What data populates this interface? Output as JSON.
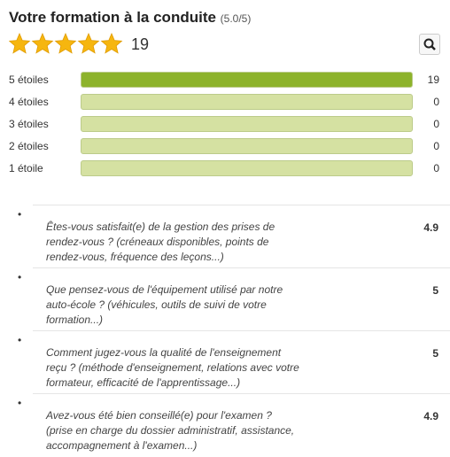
{
  "header": {
    "title": "Votre formation à la conduite",
    "rating": "(5.0/5)",
    "review_count": 19
  },
  "ratings": [
    {
      "label": "5 étoiles",
      "count": 19
    },
    {
      "label": "4 étoiles",
      "count": 0
    },
    {
      "label": "3 étoiles",
      "count": 0
    },
    {
      "label": "2 étoiles",
      "count": 0
    },
    {
      "label": "1 étoile",
      "count": 0
    }
  ],
  "questions": [
    {
      "lines": [
        "Êtes-vous satisfait(e) de la gestion des prises de",
        "rendez-vous ? (créneaux disponibles, points de",
        "rendez-vous, fréquence des leçons...)"
      ],
      "score": 4.9
    },
    {
      "lines": [
        "Que pensez-vous de l'équipement utilisé par notre",
        "auto-école ? (véhicules, outils de suivi de votre",
        "formation...)"
      ],
      "score": 5
    },
    {
      "lines": [
        "Comment jugez-vous la qualité de l'enseignement",
        "reçu ? (méthode d'enseignement, relations avec votre",
        "formateur, efficacité de l'apprentissage...)"
      ],
      "score": 5
    },
    {
      "lines": [
        "Avez-vous été bien conseillé(e) pour l'examen ?",
        "(prise en charge du dossier administratif, assistance,",
        "accompagnement à l'examen...)"
      ],
      "score": 4.9
    }
  ]
}
